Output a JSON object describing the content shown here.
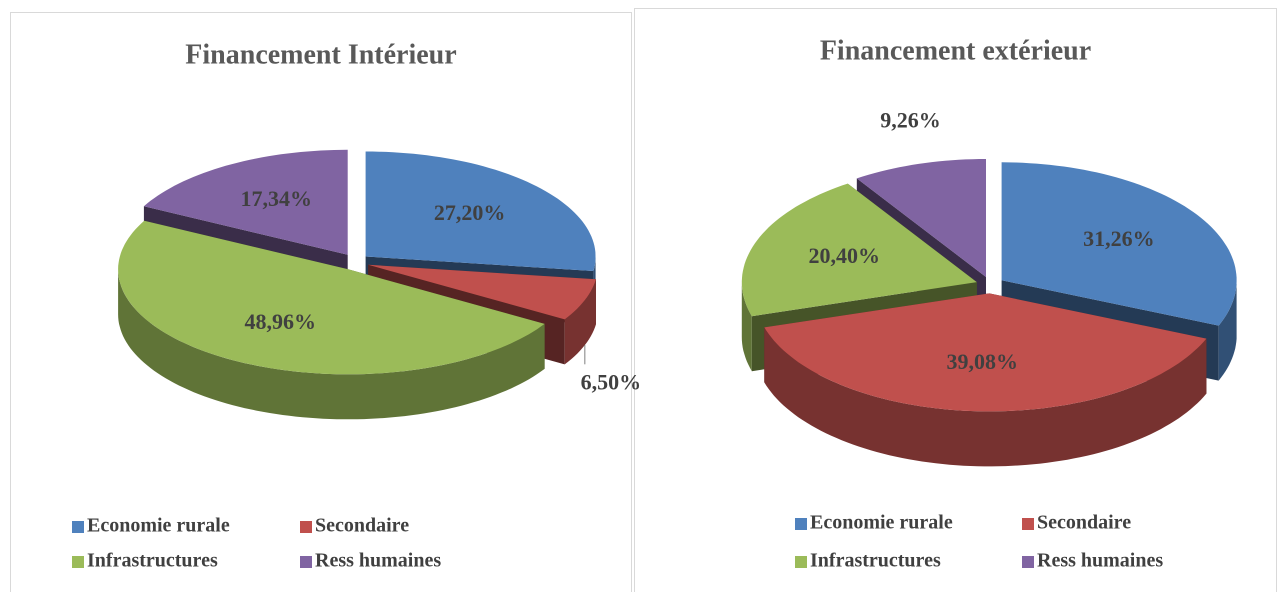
{
  "chart_data": [
    {
      "type": "pie",
      "title": "Financement Intérieur",
      "categories": [
        "Economie rurale",
        "Secondaire",
        "Infrastructures",
        "Ress humaines"
      ],
      "values": [
        27.2,
        6.5,
        48.96,
        17.34
      ],
      "value_labels": [
        "27,20%",
        "6,50%",
        "48,96%",
        "17,34%"
      ],
      "colors": [
        "#4f81bd",
        "#c0504d",
        "#9bbb59",
        "#8064a2"
      ],
      "legend": "bottom"
    },
    {
      "type": "pie",
      "title": "Financement extérieur",
      "categories": [
        "Economie rurale",
        "Secondaire",
        "Infrastructures",
        "Ress humaines"
      ],
      "values": [
        31.26,
        39.08,
        20.4,
        9.26
      ],
      "value_labels": [
        "31,26%",
        "39,08%",
        "20,40%",
        "9,26%"
      ],
      "colors": [
        "#4f81bd",
        "#c0504d",
        "#9bbb59",
        "#8064a2"
      ],
      "legend": "bottom"
    }
  ]
}
